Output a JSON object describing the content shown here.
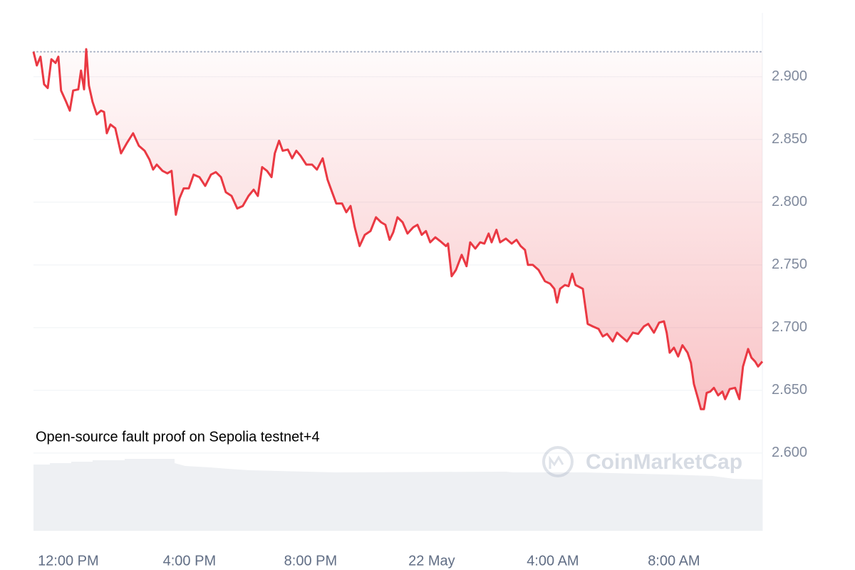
{
  "chart_data": {
    "type": "line",
    "annotation": "Open-source fault proof on Sepolia testnet+4",
    "watermark": "CoinMarketCap",
    "x": [
      -1.15,
      -1.04,
      -0.92,
      -0.8,
      -0.68,
      -0.56,
      -0.42,
      -0.33,
      -0.24,
      -0.09,
      0.05,
      0.16,
      0.33,
      0.42,
      0.52,
      0.59,
      0.68,
      0.8,
      0.94,
      1.08,
      1.18,
      1.27,
      1.39,
      1.55,
      1.74,
      1.93,
      2.14,
      2.33,
      2.52,
      2.68,
      2.8,
      2.92,
      3.11,
      3.27,
      3.41,
      3.55,
      3.67,
      3.81,
      3.98,
      4.14,
      4.33,
      4.52,
      4.71,
      4.87,
      5.04,
      5.2,
      5.39,
      5.58,
      5.76,
      5.95,
      6.12,
      6.26,
      6.4,
      6.56,
      6.71,
      6.82,
      6.96,
      7.08,
      7.25,
      7.39,
      7.53,
      7.67,
      7.86,
      8.05,
      8.21,
      8.4,
      8.56,
      8.71,
      8.85,
      9.04,
      9.18,
      9.32,
      9.46,
      9.62,
      9.79,
      9.98,
      10.16,
      10.33,
      10.47,
      10.61,
      10.73,
      10.87,
      11.04,
      11.2,
      11.39,
      11.53,
      11.67,
      11.81,
      11.95,
      12.12,
      12.28,
      12.47,
      12.54,
      12.66,
      12.8,
      12.99,
      13.15,
      13.27,
      13.44,
      13.6,
      13.74,
      13.88,
      13.98,
      14.14,
      14.26,
      14.45,
      14.64,
      14.8,
      14.94,
      15.08,
      15.18,
      15.34,
      15.53,
      15.74,
      15.91,
      16.05,
      16.14,
      16.24,
      16.4,
      16.52,
      16.64,
      16.75,
      16.99,
      17.15,
      17.32,
      17.51,
      17.65,
      17.79,
      17.98,
      18.12,
      18.26,
      18.45,
      18.64,
      18.82,
      19.01,
      19.15,
      19.34,
      19.51,
      19.67,
      19.76,
      19.86,
      20.0,
      20.14,
      20.28,
      20.45,
      20.56,
      20.66,
      20.8,
      20.89,
      20.99,
      21.08,
      21.2,
      21.32,
      21.46,
      21.6,
      21.69,
      21.84,
      22.02,
      22.16,
      22.28,
      22.45,
      22.56,
      22.68,
      22.78,
      22.92
    ],
    "series": [
      {
        "color": "#ea3943",
        "values": [
          2.92,
          2.909,
          2.916,
          2.894,
          2.891,
          2.914,
          2.911,
          2.916,
          2.889,
          2.881,
          2.873,
          2.889,
          2.89,
          2.905,
          2.89,
          2.922,
          2.893,
          2.88,
          2.87,
          2.873,
          2.872,
          2.855,
          2.862,
          2.859,
          2.839,
          2.847,
          2.855,
          2.845,
          2.841,
          2.834,
          2.826,
          2.83,
          2.825,
          2.823,
          2.825,
          2.79,
          2.803,
          2.811,
          2.811,
          2.822,
          2.82,
          2.813,
          2.822,
          2.824,
          2.82,
          2.808,
          2.805,
          2.795,
          2.797,
          2.805,
          2.81,
          2.805,
          2.828,
          2.825,
          2.82,
          2.839,
          2.849,
          2.841,
          2.842,
          2.835,
          2.841,
          2.837,
          2.83,
          2.83,
          2.826,
          2.835,
          2.818,
          2.808,
          2.799,
          2.799,
          2.792,
          2.797,
          2.78,
          2.765,
          2.774,
          2.777,
          2.788,
          2.784,
          2.782,
          2.77,
          2.776,
          2.788,
          2.784,
          2.775,
          2.78,
          2.782,
          2.774,
          2.777,
          2.768,
          2.772,
          2.769,
          2.765,
          2.767,
          2.741,
          2.746,
          2.758,
          2.749,
          2.768,
          2.763,
          2.768,
          2.767,
          2.775,
          2.768,
          2.778,
          2.768,
          2.771,
          2.767,
          2.77,
          2.765,
          2.762,
          2.75,
          2.75,
          2.746,
          2.737,
          2.735,
          2.731,
          2.72,
          2.731,
          2.734,
          2.733,
          2.743,
          2.734,
          2.731,
          2.703,
          2.701,
          2.699,
          2.693,
          2.695,
          2.689,
          2.696,
          2.693,
          2.689,
          2.696,
          2.695,
          2.701,
          2.703,
          2.696,
          2.704,
          2.705,
          2.696,
          2.68,
          2.684,
          2.677,
          2.686,
          2.68,
          2.672,
          2.655,
          2.643,
          2.635,
          2.635,
          2.648,
          2.649,
          2.652,
          2.646,
          2.649,
          2.643,
          2.651,
          2.652,
          2.643,
          2.669,
          2.683,
          2.676,
          2.673,
          2.669,
          2.673
        ]
      }
    ],
    "open_value": 2.92,
    "xlim": [
      -1.15,
      22.92
    ],
    "xticks": [
      {
        "value": 0,
        "label": "12:00 PM"
      },
      {
        "value": 4,
        "label": "4:00 PM"
      },
      {
        "value": 8,
        "label": "8:00 PM"
      },
      {
        "value": 12,
        "label": "22 May"
      },
      {
        "value": 16,
        "label": "4:00 AM"
      },
      {
        "value": 20,
        "label": "8:00 AM"
      }
    ],
    "ylim": [
      2.538,
      2.951
    ],
    "yticks": [
      {
        "value": 2.6,
        "label": "2.600"
      },
      {
        "value": 2.65,
        "label": "2.650"
      },
      {
        "value": 2.7,
        "label": "2.700"
      },
      {
        "value": 2.75,
        "label": "2.750"
      },
      {
        "value": 2.8,
        "label": "2.800"
      },
      {
        "value": 2.85,
        "label": "2.850"
      },
      {
        "value": 2.9,
        "label": "2.900"
      }
    ],
    "grid": true
  }
}
